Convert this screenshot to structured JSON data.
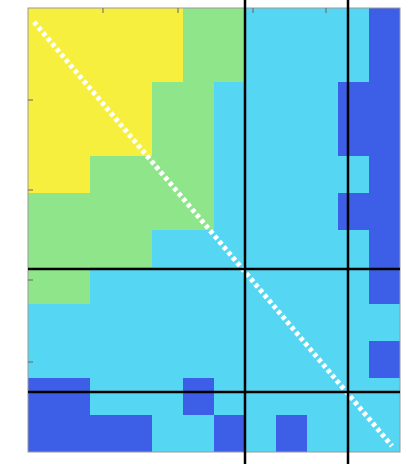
{
  "chart_data": {
    "type": "heatmap",
    "colors": [
      "#3d5ee6",
      "#55d6f2",
      "#8fe58a",
      "#f6ef3e"
    ],
    "values": [
      [
        4,
        4,
        4,
        4,
        4,
        3,
        3,
        2,
        2,
        2,
        2,
        1
      ],
      [
        4,
        4,
        4,
        4,
        4,
        3,
        3,
        2,
        2,
        2,
        2,
        1
      ],
      [
        4,
        4,
        4,
        4,
        3,
        3,
        2,
        2,
        2,
        2,
        1,
        1
      ],
      [
        4,
        4,
        4,
        4,
        3,
        3,
        2,
        2,
        2,
        2,
        1,
        1
      ],
      [
        4,
        4,
        3,
        3,
        3,
        3,
        2,
        2,
        2,
        2,
        2,
        1
      ],
      [
        3,
        3,
        3,
        3,
        3,
        3,
        2,
        2,
        2,
        2,
        1,
        1
      ],
      [
        3,
        3,
        3,
        3,
        2,
        2,
        2,
        2,
        2,
        2,
        2,
        1
      ],
      [
        3,
        3,
        2,
        2,
        2,
        2,
        2,
        2,
        2,
        2,
        2,
        1
      ],
      [
        2,
        2,
        2,
        2,
        2,
        2,
        2,
        2,
        2,
        2,
        2,
        2
      ],
      [
        2,
        2,
        2,
        2,
        2,
        2,
        2,
        2,
        2,
        2,
        2,
        1
      ],
      [
        1,
        1,
        2,
        2,
        2,
        1,
        2,
        2,
        2,
        2,
        2,
        2
      ],
      [
        1,
        1,
        1,
        1,
        2,
        2,
        1,
        2,
        1,
        2,
        2,
        2
      ]
    ]
  }
}
